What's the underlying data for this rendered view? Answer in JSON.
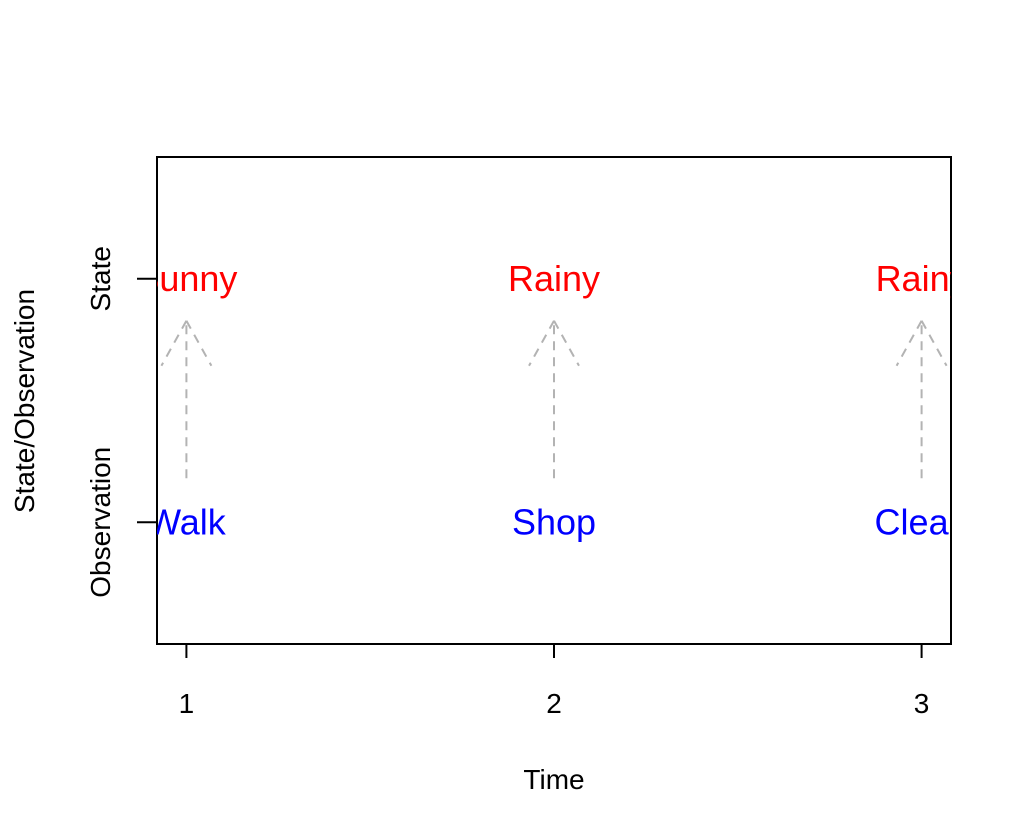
{
  "chart_data": {
    "type": "scatter",
    "title": "",
    "xlabel": "Time",
    "ylabel": "State/Observation",
    "x_ticks": [
      "1",
      "2",
      "3"
    ],
    "y_tick_labels": [
      "Observation",
      "State"
    ],
    "xlim": [
      0.92,
      3.08
    ],
    "ylim": [
      0.5,
      2.5
    ],
    "grid": false,
    "legend": "none",
    "colors": {
      "state": "#ff0000",
      "observation": "#0000ff",
      "arrow": "#b3b3b3"
    },
    "states": [
      {
        "x": 1,
        "label": "Sunny"
      },
      {
        "x": 2,
        "label": "Rainy"
      },
      {
        "x": 3,
        "label": "Rainy"
      }
    ],
    "observations": [
      {
        "x": 1,
        "label": "Walk"
      },
      {
        "x": 2,
        "label": "Shop"
      },
      {
        "x": 3,
        "label": "Clean"
      }
    ],
    "arrows": [
      {
        "x": 1,
        "from": "observation",
        "to": "state"
      },
      {
        "x": 2,
        "from": "observation",
        "to": "state"
      },
      {
        "x": 3,
        "from": "observation",
        "to": "state"
      }
    ]
  }
}
